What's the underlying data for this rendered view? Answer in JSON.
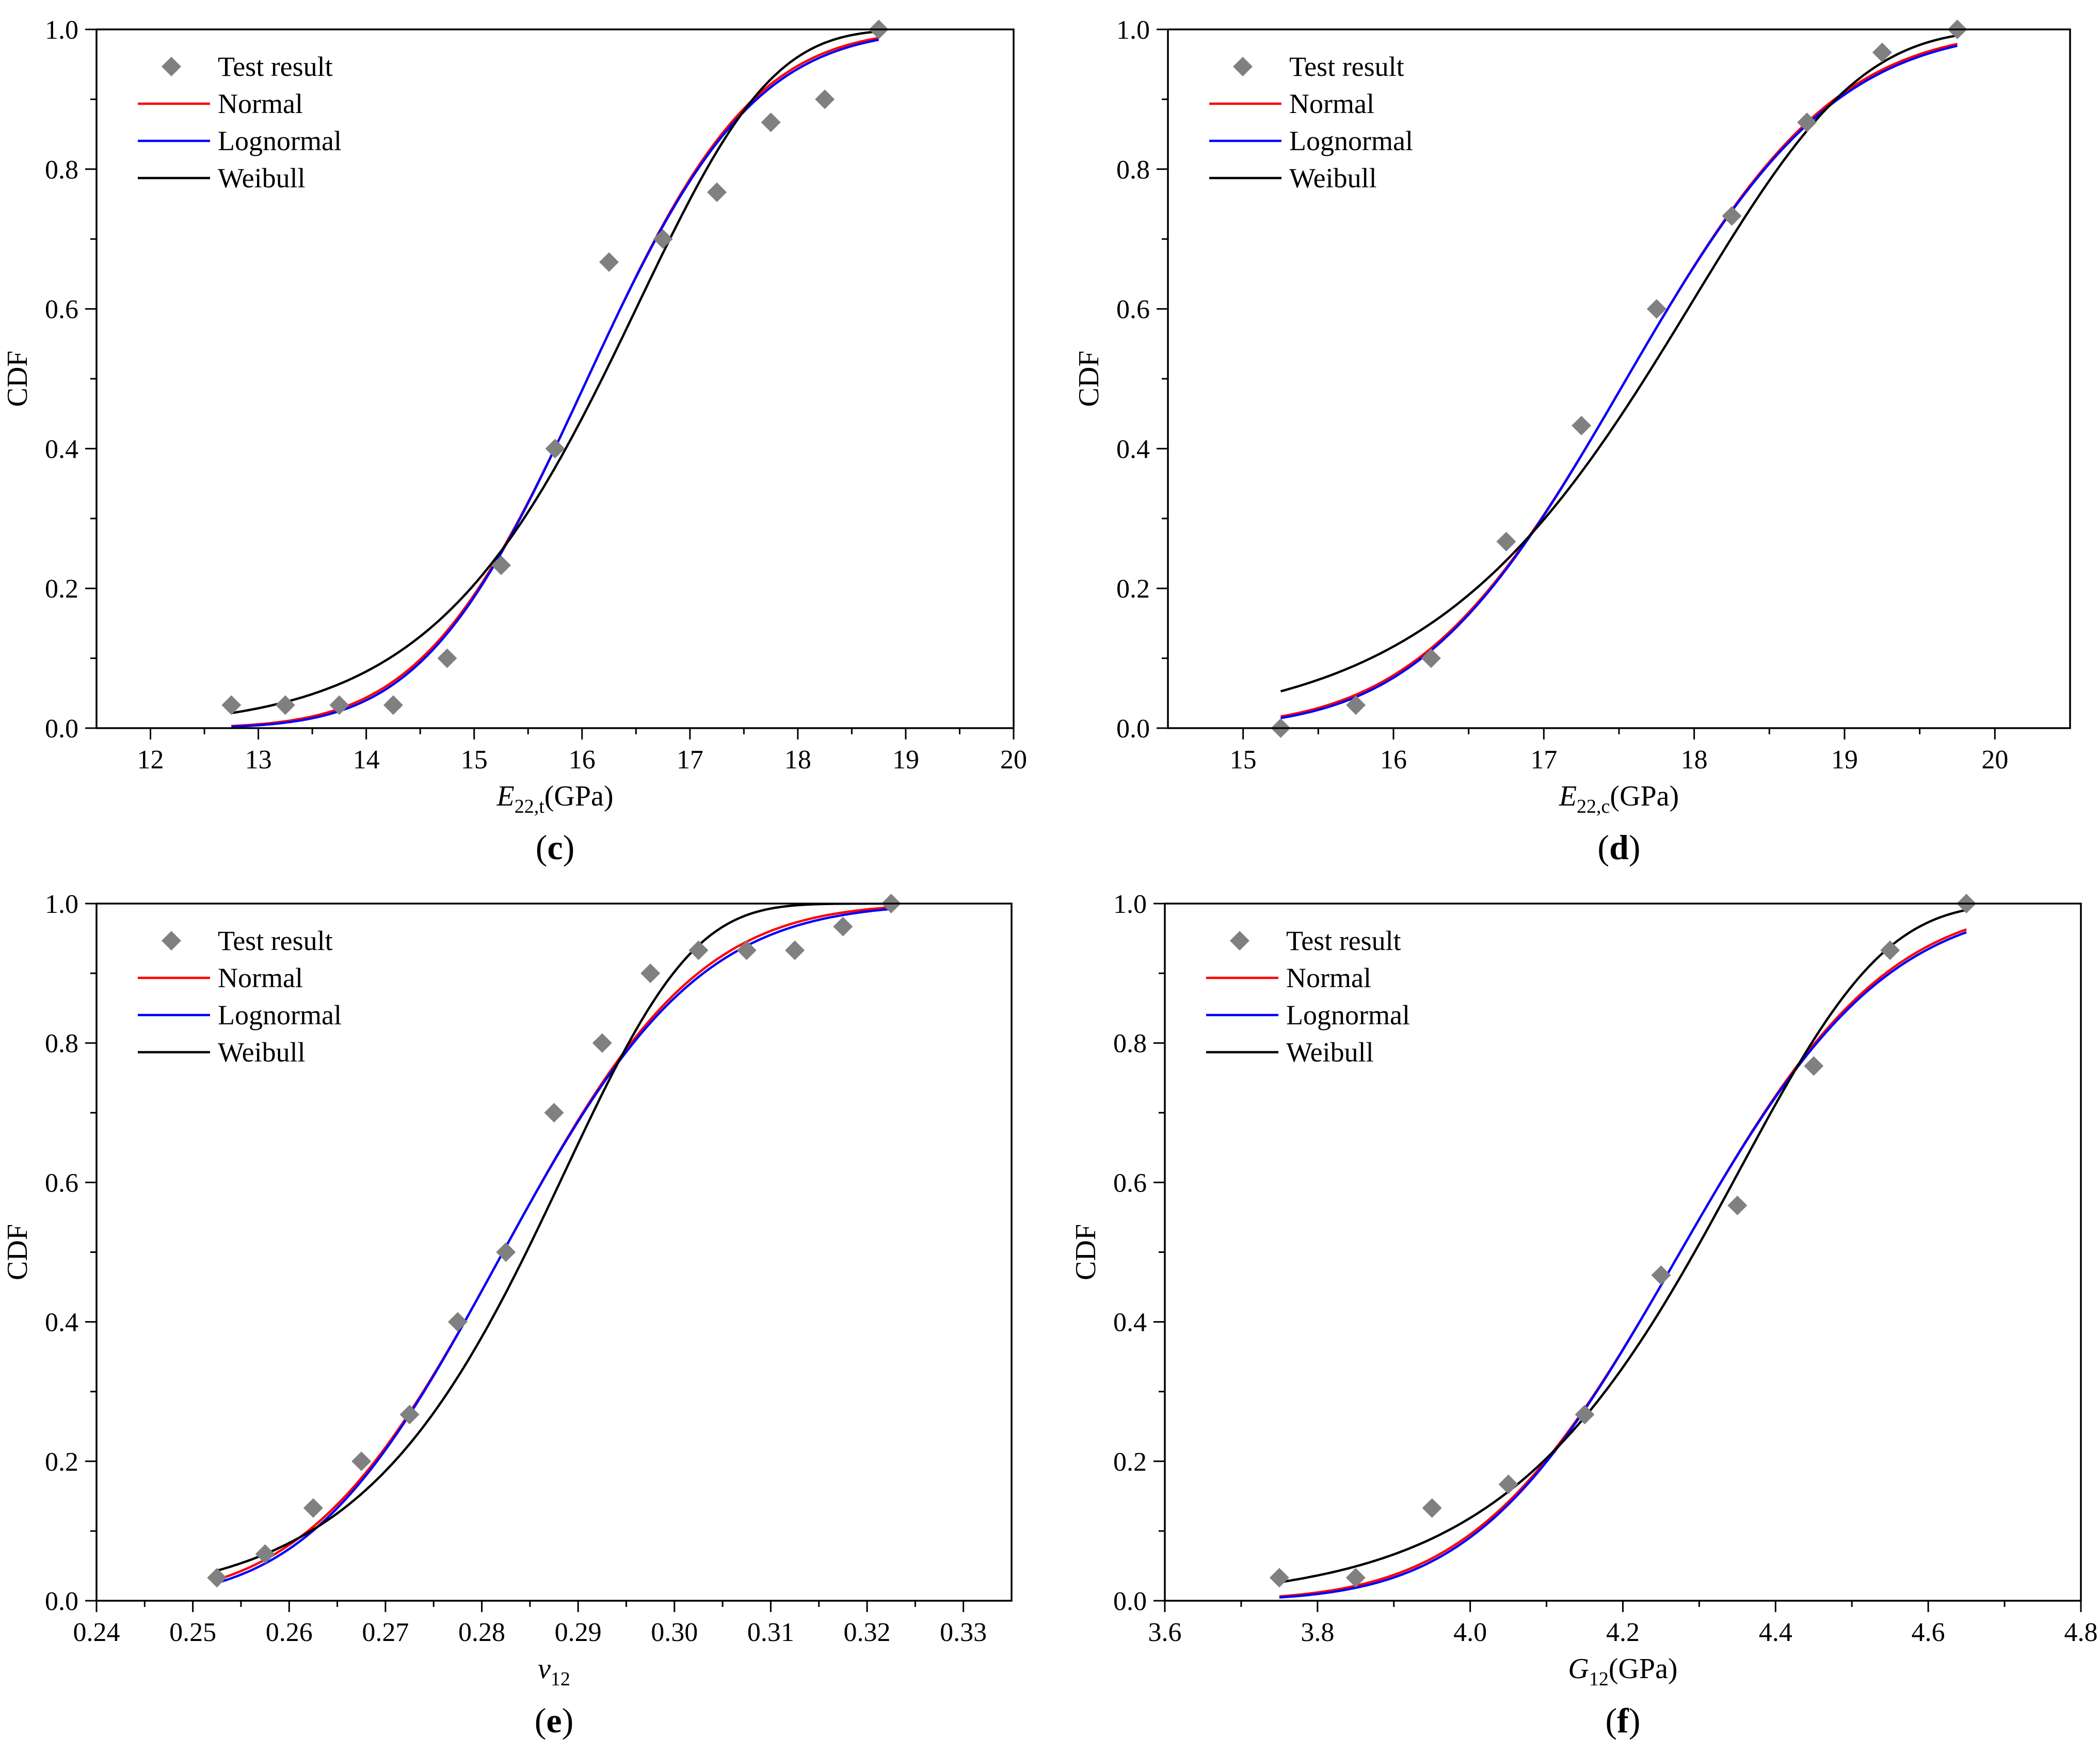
{
  "colors": {
    "test": "#808080",
    "normal": "#ff0000",
    "lognormal": "#0000ff",
    "weibull": "#000000"
  },
  "chart_data": [
    {
      "type": "scatter+line",
      "panel_label": "c",
      "ylabel": "CDF",
      "xlabel_main": "E",
      "xlabel_sub": "22,t",
      "xlabel_unit": "(GPa)",
      "xlim": [
        11.5,
        20
      ],
      "ylim": [
        0,
        1
      ],
      "xticks": [
        12,
        13,
        14,
        15,
        16,
        17,
        18,
        19,
        20
      ],
      "yticks": [
        0.0,
        0.2,
        0.4,
        0.6,
        0.8,
        1.0
      ],
      "xtick_labels": [
        "12",
        "13",
        "14",
        "15",
        "16",
        "17",
        "18",
        "19",
        "20"
      ],
      "ytick_labels": [
        "0.0",
        "0.2",
        "0.4",
        "0.6",
        "0.8",
        "1.0"
      ],
      "legend": {
        "placement": "top-left",
        "entries": [
          {
            "label": "Test result",
            "series": "test"
          },
          {
            "label": "Normal",
            "series": "normal"
          },
          {
            "label": "Lognormal",
            "series": "lognormal"
          },
          {
            "label": "Weibull",
            "series": "weibull"
          }
        ]
      },
      "test": {
        "x": [
          12.75,
          13.25,
          13.75,
          14.25,
          14.75,
          15.25,
          15.75,
          16.25,
          16.75,
          17.25,
          17.75,
          18.25,
          18.75
        ],
        "y": [
          0.033,
          0.033,
          0.033,
          0.033,
          0.1,
          0.233,
          0.4,
          0.667,
          0.7,
          0.767,
          0.867,
          0.9,
          1.0
        ]
      },
      "fits": {
        "range": [
          12.75,
          18.75
        ],
        "normal": {
          "mu": 16.05,
          "sigma": 1.2
        },
        "lognormal": {
          "mu": 16.05,
          "sigma": 1.2,
          "skew": 0.015
        },
        "weibull": {
          "lambda": 16.6,
          "k": 14.5
        }
      }
    },
    {
      "type": "scatter+line",
      "panel_label": "d",
      "ylabel": "CDF",
      "xlabel_main": "E",
      "xlabel_sub": "22,c",
      "xlabel_unit": "(GPa)",
      "xlim": [
        14.5,
        20.5
      ],
      "ylim": [
        0,
        1
      ],
      "xticks": [
        15,
        16,
        17,
        18,
        19,
        20
      ],
      "yticks": [
        0.0,
        0.2,
        0.4,
        0.6,
        0.8,
        1.0
      ],
      "xtick_labels": [
        "15",
        "16",
        "17",
        "18",
        "19",
        "20"
      ],
      "ytick_labels": [
        "0.0",
        "0.2",
        "0.4",
        "0.6",
        "0.8",
        "1.0"
      ],
      "legend": {
        "placement": "top-left",
        "entries": [
          {
            "label": "Test result",
            "series": "test"
          },
          {
            "label": "Normal",
            "series": "normal"
          },
          {
            "label": "Lognormal",
            "series": "lognormal"
          },
          {
            "label": "Weibull",
            "series": "weibull"
          }
        ]
      },
      "test": {
        "x": [
          15.25,
          15.75,
          16.25,
          16.75,
          17.25,
          17.75,
          18.25,
          18.75,
          19.25,
          19.75
        ],
        "y": [
          0.0,
          0.033,
          0.1,
          0.267,
          0.433,
          0.6,
          0.733,
          0.867,
          0.967,
          1.0
        ]
      },
      "fits": {
        "range": [
          15.25,
          19.75
        ],
        "normal": {
          "mu": 17.55,
          "sigma": 1.08
        },
        "lognormal": {
          "mu": 17.55,
          "sigma": 1.08,
          "skew": 0.012
        },
        "weibull": {
          "lambda": 18.05,
          "k": 17.3
        }
      }
    },
    {
      "type": "scatter+line",
      "panel_label": "e",
      "ylabel": "CDF",
      "xlabel_main": "v",
      "xlabel_sub": "12",
      "xlabel_unit": "",
      "xlim": [
        0.24,
        0.335
      ],
      "ylim": [
        0,
        1
      ],
      "xticks": [
        0.24,
        0.25,
        0.26,
        0.27,
        0.28,
        0.29,
        0.3,
        0.31,
        0.32,
        0.33
      ],
      "yticks": [
        0.0,
        0.2,
        0.4,
        0.6,
        0.8,
        1.0
      ],
      "xtick_labels": [
        "0.24",
        "0.25",
        "0.26",
        "0.27",
        "0.28",
        "0.29",
        "0.30",
        "0.31",
        "0.32",
        "0.33"
      ],
      "ytick_labels": [
        "0.0",
        "0.2",
        "0.4",
        "0.6",
        "0.8",
        "1.0"
      ],
      "legend": {
        "placement": "top-left",
        "entries": [
          {
            "label": "Test result",
            "series": "test"
          },
          {
            "label": "Normal",
            "series": "normal"
          },
          {
            "label": "Lognormal",
            "series": "lognormal"
          },
          {
            "label": "Weibull",
            "series": "weibull"
          }
        ]
      },
      "test": {
        "x": [
          0.2525,
          0.2575,
          0.2625,
          0.2675,
          0.2725,
          0.2775,
          0.2825,
          0.2875,
          0.2925,
          0.2975,
          0.3025,
          0.3075,
          0.3125,
          0.3175,
          0.3225
        ],
        "y": [
          0.033,
          0.067,
          0.133,
          0.2,
          0.267,
          0.4,
          0.5,
          0.7,
          0.8,
          0.9,
          0.933,
          0.933,
          0.933,
          0.967,
          1.0
        ]
      },
      "fits": {
        "range": [
          0.2525,
          0.3225
        ],
        "normal": {
          "mu": 0.2822,
          "sigma": 0.0158
        },
        "lognormal": {
          "mu": 0.2822,
          "sigma": 0.0158,
          "skew": 0.02
        },
        "weibull": {
          "lambda": 0.2892,
          "k": 23.0
        }
      }
    },
    {
      "type": "scatter+line",
      "panel_label": "f",
      "ylabel": "CDF",
      "xlabel_main": "G",
      "xlabel_sub": "12",
      "xlabel_unit": "(GPa)",
      "xlim": [
        3.6,
        4.8
      ],
      "ylim": [
        0,
        1
      ],
      "xticks": [
        3.6,
        3.8,
        4.0,
        4.2,
        4.4,
        4.6,
        4.8
      ],
      "yticks": [
        0.0,
        0.2,
        0.4,
        0.6,
        0.8,
        1.0
      ],
      "xtick_labels": [
        "3.6",
        "3.8",
        "4.0",
        "4.2",
        "4.4",
        "4.6",
        "4.8"
      ],
      "ytick_labels": [
        "0.0",
        "0.2",
        "0.4",
        "0.6",
        "0.8",
        "1.0"
      ],
      "legend": {
        "placement": "top-left",
        "entries": [
          {
            "label": "Test result",
            "series": "test"
          },
          {
            "label": "Normal",
            "series": "normal"
          },
          {
            "label": "Lognormal",
            "series": "lognormal"
          },
          {
            "label": "Weibull",
            "series": "weibull"
          }
        ]
      },
      "test": {
        "x": [
          3.75,
          3.85,
          3.95,
          4.05,
          4.15,
          4.25,
          4.35,
          4.45,
          4.55,
          4.65
        ],
        "y": [
          0.033,
          0.033,
          0.133,
          0.167,
          0.267,
          0.467,
          0.567,
          0.767,
          0.933,
          1.0
        ]
      },
      "fits": {
        "range": [
          3.75,
          4.65
        ],
        "normal": {
          "mu": 4.275,
          "sigma": 0.21
        },
        "lognormal": {
          "mu": 4.275,
          "sigma": 0.21,
          "skew": 0.015
        },
        "weibull": {
          "lambda": 4.36,
          "k": 24.0
        }
      }
    }
  ]
}
